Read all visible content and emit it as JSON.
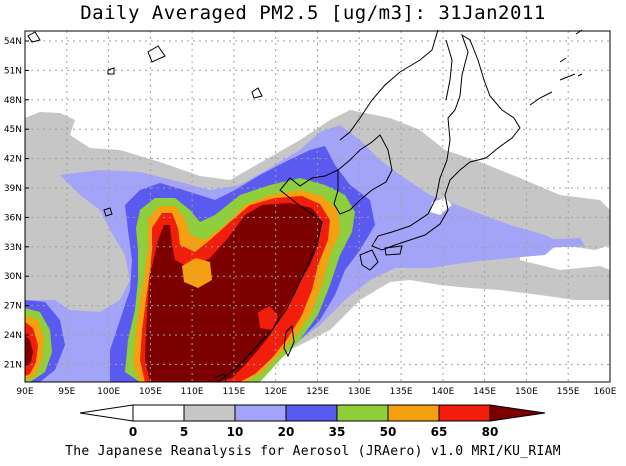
{
  "title": "Daily Averaged PM2.5 [ug/m3]: 31Jan2011",
  "footer": "The Japanese Reanalysis for Aerosol (JRAero) v1.0 MRI/KU_RIAM",
  "lat_labels": [
    "54N",
    "51N",
    "48N",
    "45N",
    "42N",
    "39N",
    "36N",
    "33N",
    "30N",
    "27N",
    "24N",
    "21N"
  ],
  "lon_labels": [
    "90E",
    "95E",
    "100E",
    "105E",
    "110E",
    "115E",
    "120E",
    "125E",
    "130E",
    "135E",
    "140E",
    "145E",
    "150E",
    "155E",
    "160E"
  ],
  "colorbar": {
    "ticks": [
      "0",
      "5",
      "10",
      "20",
      "35",
      "50",
      "65",
      "80"
    ],
    "colors": [
      "#ffffff",
      "#c6c6c6",
      "#a3a3f7",
      "#5a5af0",
      "#8fcf3c",
      "#f5a00f",
      "#f01e0a",
      "#7d0000"
    ]
  }
}
